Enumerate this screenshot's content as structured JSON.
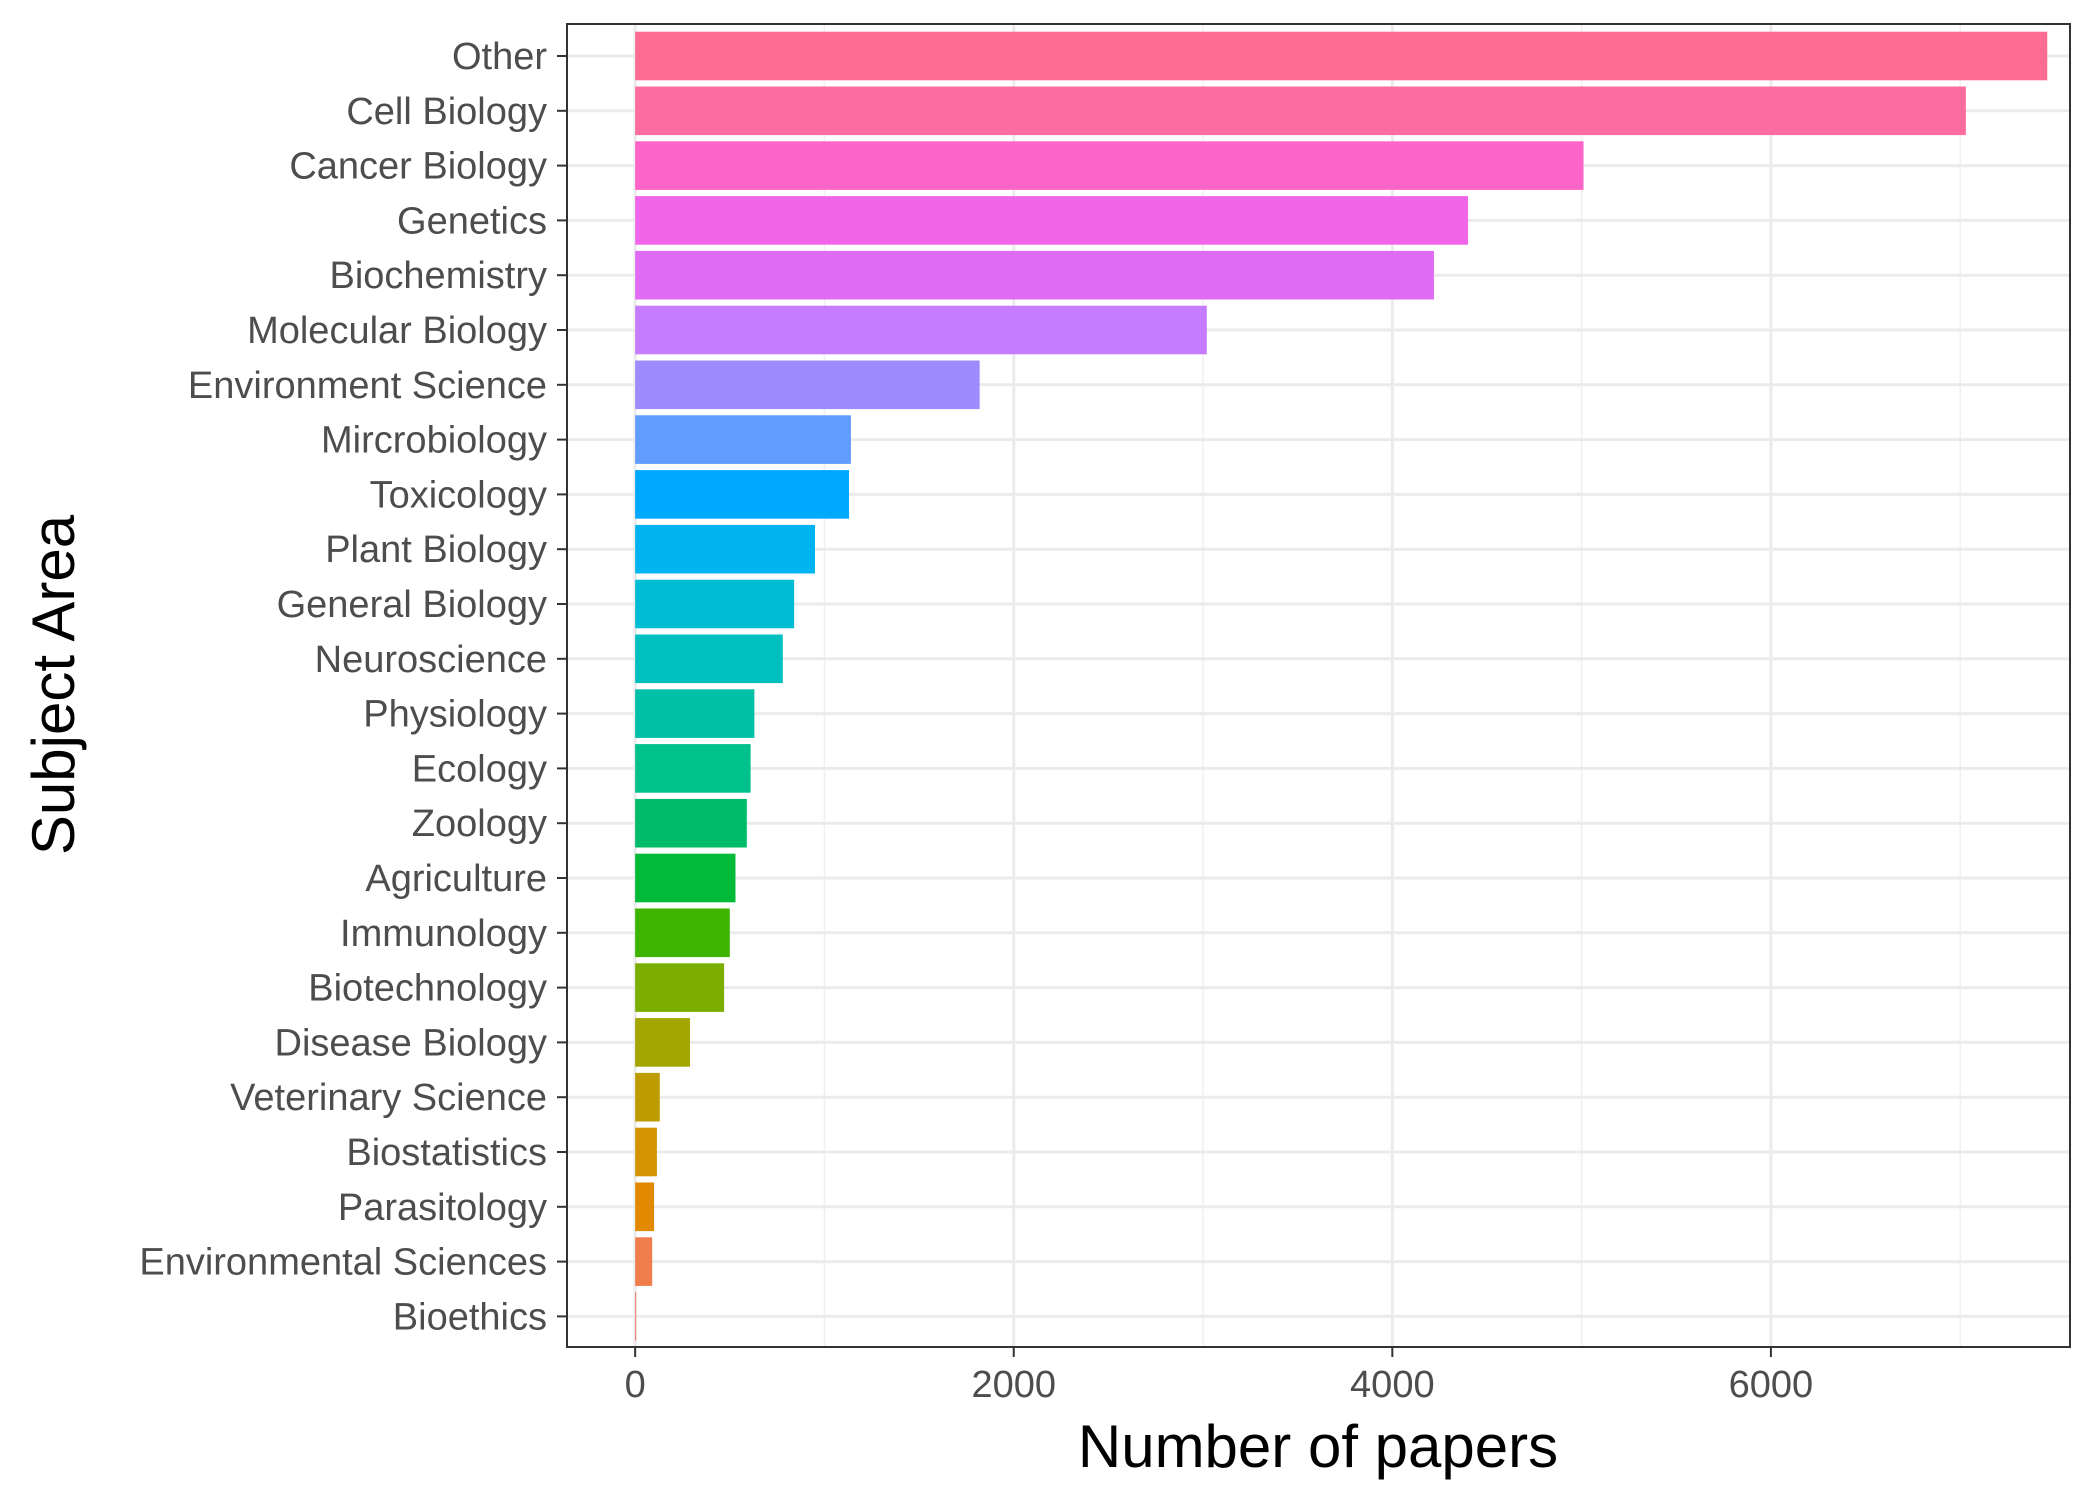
{
  "chart_data": {
    "type": "bar",
    "orientation": "horizontal",
    "categories": [
      "Other",
      "Cell Biology",
      "Cancer Biology",
      "Genetics",
      "Biochemistry",
      "Molecular Biology",
      "Environment Science",
      "Mircrobiology",
      "Toxicology",
      "Plant Biology",
      "General Biology",
      "Neuroscience",
      "Physiology",
      "Ecology",
      "Zoology",
      "Agriculture",
      "Immunology",
      "Biotechnology",
      "Disease Biology",
      "Veterinary Science",
      "Biostatistics",
      "Parasitology",
      "Environmental Sciences",
      "Bioethics"
    ],
    "values": [
      7460,
      7030,
      5010,
      4400,
      4220,
      3020,
      1820,
      1140,
      1130,
      950,
      840,
      780,
      630,
      610,
      590,
      530,
      500,
      470,
      290,
      130,
      115,
      100,
      90,
      5
    ],
    "colors": [
      "#FF6C91",
      "#FF6C9F",
      "#FF64C8",
      "#F166E8",
      "#E06CF6",
      "#C77CFF",
      "#9E8CFF",
      "#619CFF",
      "#00A9FF",
      "#00B4EF",
      "#00BDD4",
      "#00C0BF",
      "#00C1A7",
      "#00C08B",
      "#00BC6A",
      "#00BA38",
      "#3CB400",
      "#7CAE00",
      "#A3A500",
      "#BE9C00",
      "#D29400",
      "#E38900",
      "#F07E4D",
      "#F8766D"
    ],
    "xlabel": "Number of papers",
    "ylabel": "Subject Area",
    "xlim": [
      -360,
      7580
    ],
    "xticks": [
      0,
      2000,
      4000,
      6000
    ],
    "xtick_labels": [
      "0",
      "2000",
      "4000",
      "6000"
    ],
    "grid": true,
    "legend": "none"
  }
}
